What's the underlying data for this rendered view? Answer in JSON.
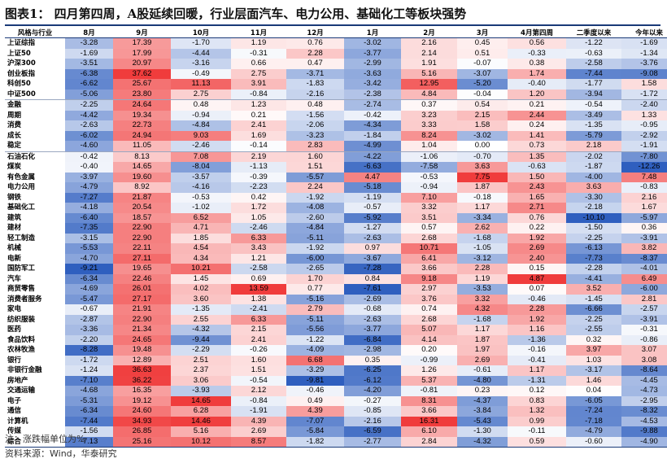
{
  "title": "图表1：  四月第四周，A股延续回暖，行业层面汽车、电力公用、基础化工等板块强势",
  "columns": [
    "风格与行业",
    "8月",
    "9月",
    "10月",
    "11月",
    "12月",
    "1月",
    "2月",
    "3月",
    "4月第四周",
    "二季度以来",
    "今年以来"
  ],
  "rows": [
    {
      "name": "上证综指",
      "values": [
        -3.28,
        17.39,
        -1.7,
        1.19,
        0.76,
        -3.02,
        2.16,
        0.45,
        0.56,
        -1.22,
        -1.69
      ]
    },
    {
      "name": "上证50",
      "values": [
        -1.69,
        17.99,
        -4.44,
        -0.31,
        2.28,
        -3.77,
        2.14,
        0.51,
        -0.33,
        -0.63,
        -1.34
      ]
    },
    {
      "name": "沪深300",
      "values": [
        -3.51,
        20.97,
        -3.16,
        0.66,
        0.47,
        -2.99,
        1.91,
        -0.07,
        0.38,
        -2.58,
        -3.76
      ]
    },
    {
      "name": "创业板指",
      "values": [
        -6.38,
        37.62,
        -0.49,
        2.75,
        -3.71,
        -3.63,
        5.16,
        -3.07,
        1.74,
        -7.44,
        -9.08
      ]
    },
    {
      "name": "科创50",
      "values": [
        -6.62,
        25.67,
        11.13,
        3.91,
        -1.83,
        -3.42,
        12.95,
        -5.2,
        -0.4,
        -1.77,
        1.58
      ]
    },
    {
      "name": "中证500",
      "values": [
        -5.06,
        23.8,
        2.75,
        -0.84,
        -2.16,
        -2.38,
        4.84,
        -0.04,
        1.2,
        -3.94,
        -1.72
      ]
    },
    {
      "name": "金融",
      "sep": true,
      "values": [
        -2.25,
        24.64,
        0.48,
        1.23,
        0.48,
        -2.74,
        0.37,
        0.54,
        0.21,
        -0.54,
        -2.4
      ]
    },
    {
      "name": "周期",
      "values": [
        -4.42,
        19.34,
        -0.94,
        0.21,
        -1.56,
        -0.42,
        3.23,
        2.15,
        2.44,
        -3.49,
        1.33
      ]
    },
    {
      "name": "消费",
      "values": [
        -2.63,
        22.73,
        -4.84,
        2.41,
        -2.06,
        -4.34,
        3.33,
        1.58,
        0.24,
        -1.35,
        -0.95
      ]
    },
    {
      "name": "成长",
      "values": [
        -6.02,
        24.94,
        9.03,
        1.69,
        -3.23,
        -1.84,
        8.24,
        -3.02,
        1.41,
        -5.79,
        -2.92
      ]
    },
    {
      "name": "稳定",
      "values": [
        -4.6,
        11.05,
        -2.46,
        -0.14,
        2.83,
        -4.99,
        1.04,
        0.0,
        0.73,
        2.18,
        -1.91
      ]
    },
    {
      "name": "石油石化",
      "sep": true,
      "values": [
        -0.42,
        8.13,
        7.08,
        2.19,
        1.6,
        -4.22,
        -1.06,
        -0.7,
        1.35,
        -2.02,
        -7.8
      ]
    },
    {
      "name": "煤炭",
      "values": [
        -0.4,
        14.65,
        -8.04,
        -1.13,
        1.51,
        -6.63,
        -7.58,
        3.63,
        -0.63,
        -1.87,
        -12.26
      ]
    },
    {
      "name": "有色金属",
      "values": [
        -3.97,
        19.6,
        -3.57,
        -0.39,
        -5.57,
        4.47,
        -0.53,
        7.75,
        1.5,
        -4.0,
        7.48
      ]
    },
    {
      "name": "电力公用",
      "values": [
        -4.79,
        8.92,
        -4.16,
        -2.23,
        2.24,
        -5.18,
        -0.94,
        1.87,
        2.43,
        3.63,
        -0.83
      ]
    },
    {
      "name": "钢铁",
      "values": [
        -7.27,
        21.87,
        -0.53,
        0.42,
        -1.92,
        -1.19,
        7.1,
        -0.18,
        1.65,
        -3.3,
        2.16
      ]
    },
    {
      "name": "基础化工",
      "values": [
        -4.18,
        20.54,
        -1.02,
        1.72,
        -4.08,
        -0.57,
        3.32,
        1.17,
        2.71,
        -2.18,
        1.67
      ]
    },
    {
      "name": "建筑",
      "values": [
        -6.4,
        18.57,
        6.52,
        1.05,
        -2.6,
        -5.92,
        3.51,
        -3.34,
        0.76,
        -10.1,
        -5.97
      ]
    },
    {
      "name": "建材",
      "values": [
        -7.35,
        22.9,
        4.71,
        -2.46,
        -4.84,
        -1.27,
        0.57,
        2.62,
        0.22,
        -1.5,
        0.36
      ]
    },
    {
      "name": "轻工制造",
      "values": [
        -3.15,
        22.9,
        1.85,
        6.33,
        -5.11,
        -2.63,
        2.68,
        -1.68,
        1.92,
        -2.25,
        -3.91
      ]
    },
    {
      "name": "机械",
      "values": [
        -5.53,
        22.11,
        4.54,
        3.43,
        -1.92,
        0.97,
        10.71,
        -1.05,
        2.69,
        -6.13,
        3.82
      ]
    },
    {
      "name": "电新",
      "values": [
        -4.7,
        27.11,
        4.34,
        1.21,
        -6.0,
        -3.67,
        6.41,
        -3.12,
        2.4,
        -7.73,
        -8.37
      ]
    },
    {
      "name": "国防军工",
      "values": [
        -9.21,
        19.65,
        10.21,
        -2.58,
        -2.65,
        -7.28,
        3.66,
        2.28,
        0.15,
        -2.28,
        -4.01
      ]
    },
    {
      "name": "汽车",
      "values": [
        -6.34,
        22.46,
        1.45,
        0.69,
        1.7,
        0.84,
        9.18,
        1.19,
        4.87,
        -4.41,
        6.49
      ]
    },
    {
      "name": "商贸零售",
      "values": [
        -4.69,
        26.01,
        4.02,
        13.59,
        0.77,
        -7.61,
        2.97,
        -3.53,
        0.07,
        3.52,
        -6.0
      ]
    },
    {
      "name": "消费者服务",
      "values": [
        -5.47,
        27.17,
        3.6,
        1.38,
        -5.16,
        -2.69,
        3.76,
        3.32,
        -0.46,
        -1.45,
        2.81
      ]
    },
    {
      "name": "家电",
      "values": [
        -0.67,
        21.91,
        -1.35,
        -2.41,
        2.79,
        -0.68,
        0.74,
        4.32,
        2.28,
        -6.66,
        -2.57
      ]
    },
    {
      "name": "纺织服装",
      "values": [
        -2.87,
        22.9,
        2.55,
        6.33,
        -5.11,
        -2.63,
        2.68,
        -1.68,
        1.92,
        -2.25,
        -3.91
      ]
    },
    {
      "name": "医药",
      "values": [
        -3.36,
        21.34,
        -4.32,
        2.15,
        -5.56,
        -3.77,
        5.07,
        1.17,
        1.16,
        -2.55,
        -0.31
      ]
    },
    {
      "name": "食品饮料",
      "values": [
        -2.2,
        24.65,
        -9.44,
        2.41,
        -1.22,
        -6.84,
        4.14,
        1.87,
        -1.36,
        0.32,
        -0.86
      ]
    },
    {
      "name": "农林牧渔",
      "values": [
        -8.28,
        19.48,
        -2.29,
        -0.26,
        -4.09,
        -2.98,
        0.2,
        1.97,
        -0.16,
        3.97,
        3.07
      ]
    },
    {
      "name": "银行",
      "values": [
        -1.72,
        12.89,
        2.51,
        1.6,
        6.68,
        0.35,
        -0.99,
        2.69,
        -0.41,
        1.03,
        3.08
      ]
    },
    {
      "name": "非银行金融",
      "values": [
        -1.24,
        36.63,
        2.37,
        1.51,
        -3.29,
        -6.25,
        1.26,
        -0.61,
        1.17,
        -3.17,
        -8.64
      ]
    },
    {
      "name": "房地产",
      "values": [
        -7.1,
        36.22,
        3.06,
        -0.54,
        -9.81,
        -6.12,
        5.37,
        -4.8,
        -1.31,
        1.46,
        -4.45
      ]
    },
    {
      "name": "交通运输",
      "values": [
        -4.68,
        16.35,
        -3.93,
        2.12,
        -0.46,
        -4.2,
        -0.81,
        0.23,
        0.12,
        0.04,
        -4.73
      ]
    },
    {
      "name": "电子",
      "values": [
        -5.31,
        19.12,
        14.65,
        -0.84,
        0.49,
        -0.27,
        8.31,
        -4.37,
        0.83,
        -6.05,
        -2.95
      ]
    },
    {
      "name": "通信",
      "values": [
        -6.34,
        24.6,
        6.28,
        -1.91,
        4.39,
        -0.85,
        3.66,
        -3.84,
        1.32,
        -7.24,
        -8.32
      ]
    },
    {
      "name": "计算机",
      "values": [
        -7.44,
        34.93,
        14.46,
        4.39,
        -7.07,
        -2.16,
        16.31,
        -5.43,
        0.99,
        -7.18,
        -4.53
      ]
    },
    {
      "name": "传媒",
      "values": [
        -1.56,
        26.85,
        5.16,
        2.69,
        -5.84,
        -6.59,
        6.1,
        -1.3,
        -0.11,
        -4.79,
        -9.88
      ]
    },
    {
      "name": "综合",
      "values": [
        -7.13,
        25.16,
        10.12,
        8.57,
        -1.82,
        -2.77,
        2.84,
        -4.32,
        0.59,
        -0.6,
        -4.9
      ]
    }
  ],
  "note": "注：涨跌幅单位为%",
  "source": "资料来源：Wind，华泰研究",
  "colors": {
    "positive": "#f03c3c",
    "negative": "#2f5fbf",
    "rule": "#1a3a78"
  }
}
